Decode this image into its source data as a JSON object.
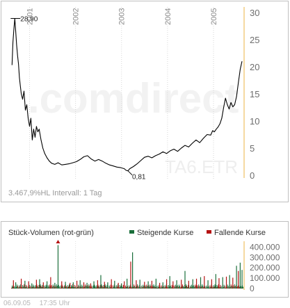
{
  "chart_data": [
    {
      "type": "line",
      "x_labels": [
        "2001",
        "2002",
        "2003",
        "2004",
        "2005"
      ],
      "x_label_dates": [
        2001.0,
        2002.0,
        2003.0,
        2004.0,
        2005.0
      ],
      "y_ticks": [
        0,
        5,
        10,
        15,
        20,
        25,
        30
      ],
      "ylim": [
        0,
        30.5
      ],
      "xlim": [
        2000.6,
        2005.65
      ],
      "series": [
        {
          "x": [
            2000.62,
            2000.64,
            2000.66,
            2000.68,
            2000.7,
            2000.72,
            2000.74,
            2000.76,
            2000.78,
            2000.8,
            2000.82,
            2000.85,
            2000.88,
            2000.91,
            2000.94,
            2000.97,
            2001.0,
            2001.03,
            2001.06,
            2001.09,
            2001.12,
            2001.15,
            2001.18,
            2001.21,
            2001.25,
            2001.29,
            2001.33,
            2001.38,
            2001.43,
            2001.48,
            2001.55,
            2001.62,
            2001.7,
            2001.78,
            2001.86,
            2001.94,
            2002.02,
            2002.1,
            2002.18,
            2002.26,
            2002.34,
            2002.42,
            2002.5,
            2002.58,
            2002.66,
            2002.74,
            2002.82,
            2002.9,
            2002.98,
            2003.06,
            2003.1,
            2003.14,
            2003.18,
            2003.26,
            2003.34,
            2003.42,
            2003.5,
            2003.58,
            2003.66,
            2003.74,
            2003.82,
            2003.9,
            2003.98,
            2004.06,
            2004.14,
            2004.22,
            2004.3,
            2004.38,
            2004.46,
            2004.54,
            2004.62,
            2004.7,
            2004.78,
            2004.86,
            2004.94,
            2004.98,
            2005.02,
            2005.06,
            2005.1,
            2005.14,
            2005.18,
            2005.22,
            2005.26,
            2005.3,
            2005.34,
            2005.38,
            2005.42,
            2005.46,
            2005.5,
            2005.54,
            2005.58,
            2005.62
          ],
          "values": [
            20.3,
            24.5,
            27.0,
            28.9,
            26.5,
            24.0,
            22.0,
            20.5,
            18.0,
            16.5,
            15.0,
            14.0,
            15.5,
            12.0,
            13.0,
            10.5,
            9.0,
            10.5,
            6.5,
            8.5,
            7.0,
            9.0,
            8.0,
            8.5,
            6.5,
            5.0,
            4.0,
            3.2,
            2.6,
            2.2,
            2.0,
            2.3,
            1.9,
            2.0,
            2.1,
            2.3,
            2.5,
            2.9,
            3.4,
            3.6,
            3.0,
            2.6,
            2.9,
            2.6,
            2.2,
            1.9,
            1.7,
            1.5,
            1.4,
            1.2,
            0.9,
            0.81,
            1.2,
            1.6,
            2.1,
            2.7,
            3.3,
            3.5,
            3.2,
            3.6,
            3.9,
            4.3,
            4.0,
            4.5,
            4.8,
            4.4,
            5.0,
            5.5,
            5.2,
            5.9,
            6.5,
            6.0,
            6.8,
            7.5,
            7.4,
            8.2,
            8.0,
            8.5,
            8.9,
            9.5,
            10.5,
            12.5,
            14.2,
            13.0,
            12.2,
            13.4,
            12.6,
            13.0,
            14.5,
            17.0,
            19.5,
            21.0
          ]
        }
      ],
      "annotations": [
        {
          "text": "28,90",
          "x": 2000.68,
          "y": 28.9
        },
        {
          "text": "0,81",
          "x": 2003.14,
          "y": 0.81
        }
      ],
      "watermark": ".comdirect",
      "symbol": "TA6.ETR",
      "bottom_label": "3.467,9%HL Intervall: 1 Tag",
      "grid": "vertical"
    },
    {
      "type": "bar",
      "title": "Stück-Volumen (rot-grün)",
      "legend": [
        {
          "name": "Steigende Kurse",
          "color": "#1a6e3a"
        },
        {
          "name": "Fallende Kurse",
          "color": "#b51212"
        }
      ],
      "y_tick_labels": [
        "0",
        "100.000",
        "200.000",
        "300.000",
        "400.000"
      ],
      "y_ticks": [
        0,
        100000,
        200000,
        300000,
        400000
      ],
      "ylim": [
        0,
        430000
      ],
      "xlim": [
        2000.6,
        2005.65
      ],
      "bars_rising": [
        {
          "x": 2000.7,
          "v": 60000
        },
        {
          "x": 2000.9,
          "v": 75000
        },
        {
          "x": 2001.05,
          "v": 50000
        },
        {
          "x": 2001.22,
          "v": 90000
        },
        {
          "x": 2001.38,
          "v": 70000
        },
        {
          "x": 2001.55,
          "v": 55000
        },
        {
          "x": 2001.62,
          "v": 420000
        },
        {
          "x": 2001.78,
          "v": 65000
        },
        {
          "x": 2001.95,
          "v": 60000
        },
        {
          "x": 2002.1,
          "v": 80000
        },
        {
          "x": 2002.25,
          "v": 55000
        },
        {
          "x": 2002.4,
          "v": 70000
        },
        {
          "x": 2002.55,
          "v": 130000
        },
        {
          "x": 2002.7,
          "v": 60000
        },
        {
          "x": 2002.85,
          "v": 75000
        },
        {
          "x": 2003.0,
          "v": 50000
        },
        {
          "x": 2003.12,
          "v": 95000
        },
        {
          "x": 2003.24,
          "v": 350000
        },
        {
          "x": 2003.4,
          "v": 85000
        },
        {
          "x": 2003.58,
          "v": 70000
        },
        {
          "x": 2003.75,
          "v": 95000
        },
        {
          "x": 2003.9,
          "v": 60000
        },
        {
          "x": 2004.05,
          "v": 120000
        },
        {
          "x": 2004.2,
          "v": 80000
        },
        {
          "x": 2004.38,
          "v": 170000
        },
        {
          "x": 2004.55,
          "v": 90000
        },
        {
          "x": 2004.72,
          "v": 110000
        },
        {
          "x": 2004.88,
          "v": 80000
        },
        {
          "x": 2005.05,
          "v": 140000
        },
        {
          "x": 2005.2,
          "v": 110000
        },
        {
          "x": 2005.35,
          "v": 130000
        },
        {
          "x": 2005.5,
          "v": 220000
        },
        {
          "x": 2005.58,
          "v": 250000
        },
        {
          "x": 2005.62,
          "v": 180000
        }
      ],
      "bars_falling": [
        {
          "x": 2000.65,
          "v": 80000
        },
        {
          "x": 2000.82,
          "v": 95000
        },
        {
          "x": 2000.98,
          "v": 70000
        },
        {
          "x": 2001.15,
          "v": 85000
        },
        {
          "x": 2001.3,
          "v": 60000
        },
        {
          "x": 2001.46,
          "v": 110000
        },
        {
          "x": 2001.7,
          "v": 70000
        },
        {
          "x": 2001.88,
          "v": 55000
        },
        {
          "x": 2002.03,
          "v": 75000
        },
        {
          "x": 2002.18,
          "v": 60000
        },
        {
          "x": 2002.33,
          "v": 50000
        },
        {
          "x": 2002.48,
          "v": 80000
        },
        {
          "x": 2002.63,
          "v": 65000
        },
        {
          "x": 2002.78,
          "v": 90000
        },
        {
          "x": 2002.93,
          "v": 55000
        },
        {
          "x": 2003.06,
          "v": 70000
        },
        {
          "x": 2003.2,
          "v": 260000
        },
        {
          "x": 2003.32,
          "v": 80000
        },
        {
          "x": 2003.5,
          "v": 65000
        },
        {
          "x": 2003.66,
          "v": 75000
        },
        {
          "x": 2003.83,
          "v": 55000
        },
        {
          "x": 2003.98,
          "v": 90000
        },
        {
          "x": 2004.12,
          "v": 70000
        },
        {
          "x": 2004.3,
          "v": 85000
        },
        {
          "x": 2004.46,
          "v": 75000
        },
        {
          "x": 2004.63,
          "v": 95000
        },
        {
          "x": 2004.8,
          "v": 120000
        },
        {
          "x": 2004.96,
          "v": 90000
        },
        {
          "x": 2005.12,
          "v": 100000
        },
        {
          "x": 2005.28,
          "v": 115000
        },
        {
          "x": 2005.42,
          "v": 105000
        },
        {
          "x": 2005.54,
          "v": 170000
        }
      ]
    }
  ],
  "footer": {
    "date": "06.09.05",
    "time": "17:35 Uhr"
  }
}
